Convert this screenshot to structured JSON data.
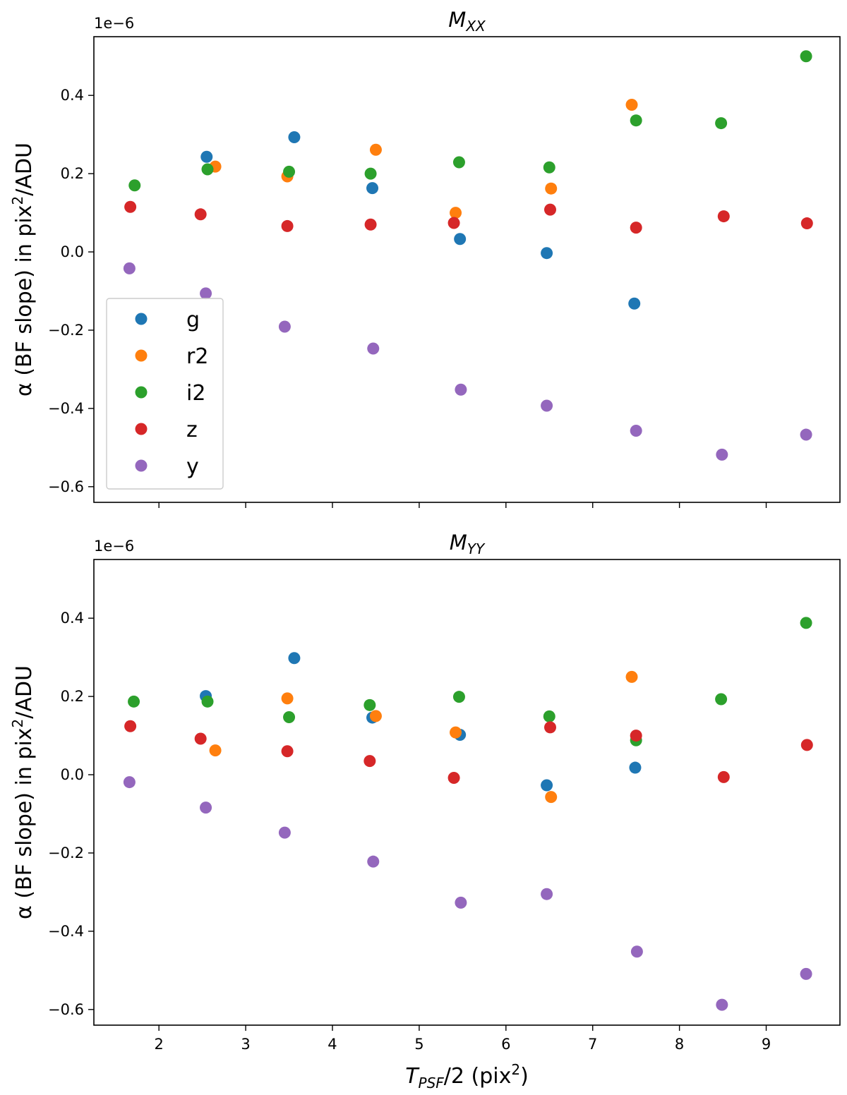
{
  "chart_data": [
    {
      "type": "scatter",
      "title_main": "M",
      "title_sub": "XX",
      "offset_text": "1e−6",
      "ylabel_main": "α (BF slope) in pix",
      "ylabel_sup": "2",
      "ylabel_tail": "/ADU",
      "xlim": [
        1.25,
        9.85
      ],
      "ylim": [
        -0.64,
        0.55
      ],
      "x_ticks": [
        2,
        3,
        4,
        5,
        6,
        7,
        8,
        9
      ],
      "y_ticks": [
        -0.6,
        -0.4,
        -0.2,
        0.0,
        0.2,
        0.4
      ],
      "y_tick_labels": [
        "−0.6",
        "−0.4",
        "−0.2",
        "0.0",
        "0.2",
        "0.4"
      ],
      "show_x_tick_labels": false,
      "legend": {
        "position": "center-left",
        "entries": [
          "g",
          "r2",
          "i2",
          "z",
          "y"
        ]
      },
      "series": [
        {
          "name": "g",
          "color": "#1f77b4",
          "x": [
            2.55,
            3.56,
            4.46,
            5.47,
            6.47,
            7.48
          ],
          "y": [
            0.243,
            0.293,
            0.163,
            0.033,
            -0.003,
            -0.132
          ]
        },
        {
          "name": "r2",
          "color": "#ff7f0e",
          "x": [
            2.65,
            3.48,
            4.5,
            5.42,
            6.52,
            7.45
          ],
          "y": [
            0.218,
            0.193,
            0.261,
            0.1,
            0.162,
            0.376
          ]
        },
        {
          "name": "i2",
          "color": "#2ca02c",
          "x": [
            1.72,
            2.56,
            3.5,
            4.44,
            5.46,
            6.5,
            7.5,
            8.48,
            9.46
          ],
          "y": [
            0.17,
            0.211,
            0.205,
            0.2,
            0.229,
            0.216,
            0.336,
            0.329,
            0.5
          ]
        },
        {
          "name": "z",
          "color": "#d62728",
          "x": [
            1.67,
            2.48,
            3.48,
            4.44,
            5.4,
            6.51,
            7.5,
            8.51,
            9.47
          ],
          "y": [
            0.115,
            0.096,
            0.066,
            0.07,
            0.074,
            0.108,
            0.062,
            0.091,
            0.073
          ]
        },
        {
          "name": "y",
          "color": "#9467bd",
          "x": [
            1.66,
            2.54,
            3.45,
            4.47,
            5.48,
            6.47,
            7.5,
            8.49,
            9.46
          ],
          "y": [
            -0.042,
            -0.106,
            -0.191,
            -0.247,
            -0.352,
            -0.393,
            -0.457,
            -0.518,
            -0.467
          ]
        }
      ]
    },
    {
      "type": "scatter",
      "title_main": "M",
      "title_sub": "YY",
      "offset_text": "1e−6",
      "ylabel_main": "α (BF slope) in pix",
      "ylabel_sup": "2",
      "ylabel_tail": "/ADU",
      "xlabel_main": "T",
      "xlabel_sub": "PSF",
      "xlabel_tail": "/2 (pix",
      "xlabel_sup": "2",
      "xlabel_close": ")",
      "xlim": [
        1.25,
        9.85
      ],
      "ylim": [
        -0.64,
        0.55
      ],
      "x_ticks": [
        2,
        3,
        4,
        5,
        6,
        7,
        8,
        9
      ],
      "x_tick_labels": [
        "2",
        "3",
        "4",
        "5",
        "6",
        "7",
        "8",
        "9"
      ],
      "y_ticks": [
        -0.6,
        -0.4,
        -0.2,
        0.0,
        0.2,
        0.4
      ],
      "y_tick_labels": [
        "−0.6",
        "−0.4",
        "−0.2",
        "0.0",
        "0.2",
        "0.4"
      ],
      "show_x_tick_labels": true,
      "series": [
        {
          "name": "g",
          "color": "#1f77b4",
          "x": [
            2.54,
            3.56,
            4.46,
            5.47,
            6.47,
            7.49
          ],
          "y": [
            0.201,
            0.298,
            0.146,
            0.102,
            -0.027,
            0.018
          ]
        },
        {
          "name": "r2",
          "color": "#ff7f0e",
          "x": [
            2.65,
            3.48,
            4.5,
            5.42,
            6.52,
            7.45
          ],
          "y": [
            0.062,
            0.195,
            0.15,
            0.108,
            -0.057,
            0.25
          ]
        },
        {
          "name": "i2",
          "color": "#2ca02c",
          "x": [
            1.71,
            2.56,
            3.5,
            4.43,
            5.46,
            6.5,
            7.5,
            8.48,
            9.46
          ],
          "y": [
            0.187,
            0.187,
            0.147,
            0.178,
            0.199,
            0.149,
            0.088,
            0.193,
            0.388
          ]
        },
        {
          "name": "z",
          "color": "#d62728",
          "x": [
            1.67,
            2.48,
            3.48,
            4.43,
            5.4,
            6.51,
            7.5,
            8.51,
            9.47
          ],
          "y": [
            0.124,
            0.092,
            0.06,
            0.035,
            -0.008,
            0.121,
            0.1,
            -0.006,
            0.076
          ]
        },
        {
          "name": "y",
          "color": "#9467bd",
          "x": [
            1.66,
            2.54,
            3.45,
            4.47,
            5.48,
            6.47,
            7.51,
            8.49,
            9.46
          ],
          "y": [
            -0.019,
            -0.084,
            -0.148,
            -0.222,
            -0.327,
            -0.305,
            -0.452,
            -0.588,
            -0.509
          ]
        }
      ]
    }
  ]
}
